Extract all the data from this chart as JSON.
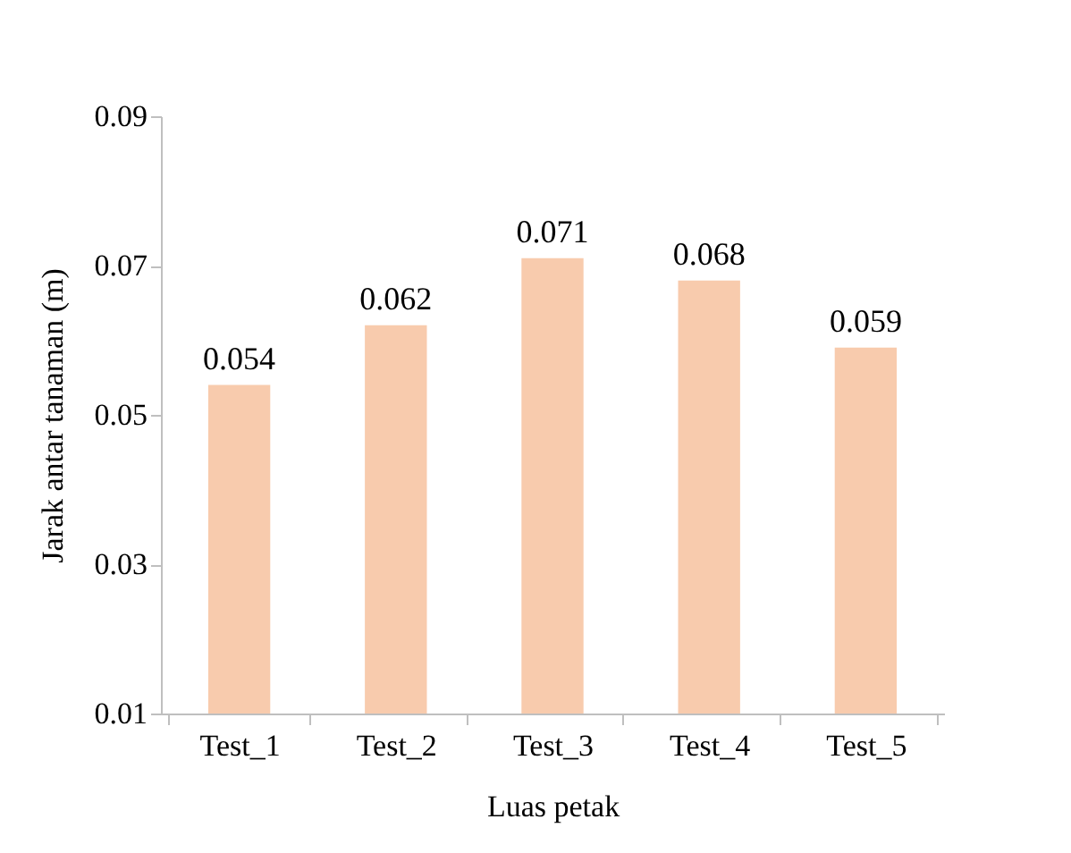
{
  "chart_data": {
    "type": "bar",
    "xlabel": "Luas petak",
    "ylabel": "Jarak antar tanaman (m)",
    "categories": [
      "Test_1",
      "Test_2",
      "Test_3",
      "Test_4",
      "Test_5"
    ],
    "values": [
      0.054,
      0.062,
      0.071,
      0.068,
      0.059
    ],
    "color": "#f8cbad",
    "ylim": [
      0.01,
      0.09
    ],
    "yticks": [
      0.01,
      0.03,
      0.05,
      0.07,
      0.09
    ],
    "grid": false,
    "data_labels": true
  }
}
